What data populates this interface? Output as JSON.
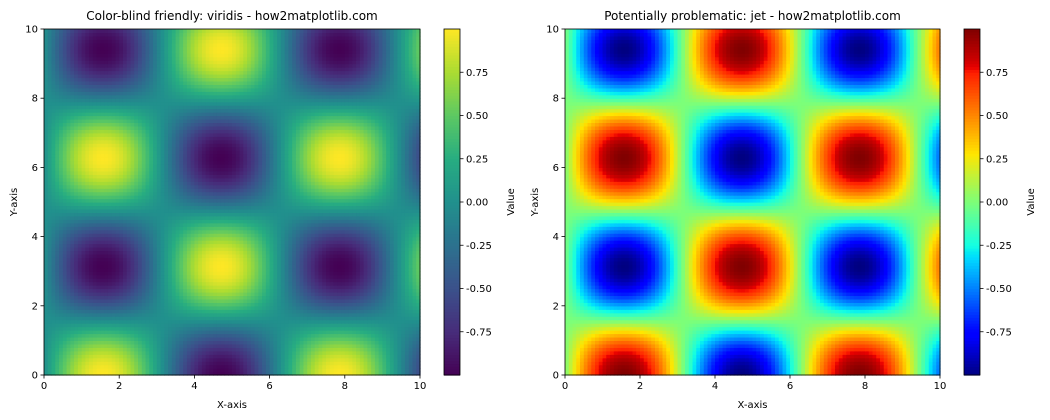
{
  "chart_data": [
    {
      "type": "heatmap",
      "title": "Color-blind friendly: viridis - how2matplotlib.com",
      "xlabel": "X-axis",
      "ylabel": "Y-axis",
      "function": "sin(x) * cos(y)",
      "grid_resolution": 100,
      "xlim": [
        0,
        10
      ],
      "ylim": [
        0,
        10
      ],
      "x_ticks": [
        "0",
        "2",
        "4",
        "6",
        "8",
        "10"
      ],
      "y_ticks": [
        "0",
        "2",
        "4",
        "6",
        "8",
        "10"
      ],
      "colormap": "viridis",
      "value_range": [
        -1,
        1
      ],
      "grid": false,
      "colorbar": {
        "label": "Value",
        "ticks": [
          "-0.75",
          "-0.50",
          "-0.25",
          "0.00",
          "0.25",
          "0.50",
          "0.75"
        ],
        "tick_values": [
          -0.75,
          -0.5,
          -0.25,
          0,
          0.25,
          0.5,
          0.75
        ]
      }
    },
    {
      "type": "heatmap",
      "title": "Potentially problematic: jet - how2matplotlib.com",
      "xlabel": "X-axis",
      "ylabel": "Y-axis",
      "function": "sin(x) * cos(y)",
      "grid_resolution": 100,
      "xlim": [
        0,
        10
      ],
      "ylim": [
        0,
        10
      ],
      "x_ticks": [
        "0",
        "2",
        "4",
        "6",
        "8",
        "10"
      ],
      "y_ticks": [
        "0",
        "2",
        "4",
        "6",
        "8",
        "10"
      ],
      "colormap": "jet",
      "value_range": [
        -1,
        1
      ],
      "grid": false,
      "colorbar": {
        "label": "Value",
        "ticks": [
          "-0.75",
          "-0.50",
          "-0.25",
          "0.00",
          "0.25",
          "0.50",
          "0.75"
        ],
        "tick_values": [
          -0.75,
          -0.5,
          -0.25,
          0,
          0.25,
          0.5,
          0.75
        ]
      }
    }
  ]
}
